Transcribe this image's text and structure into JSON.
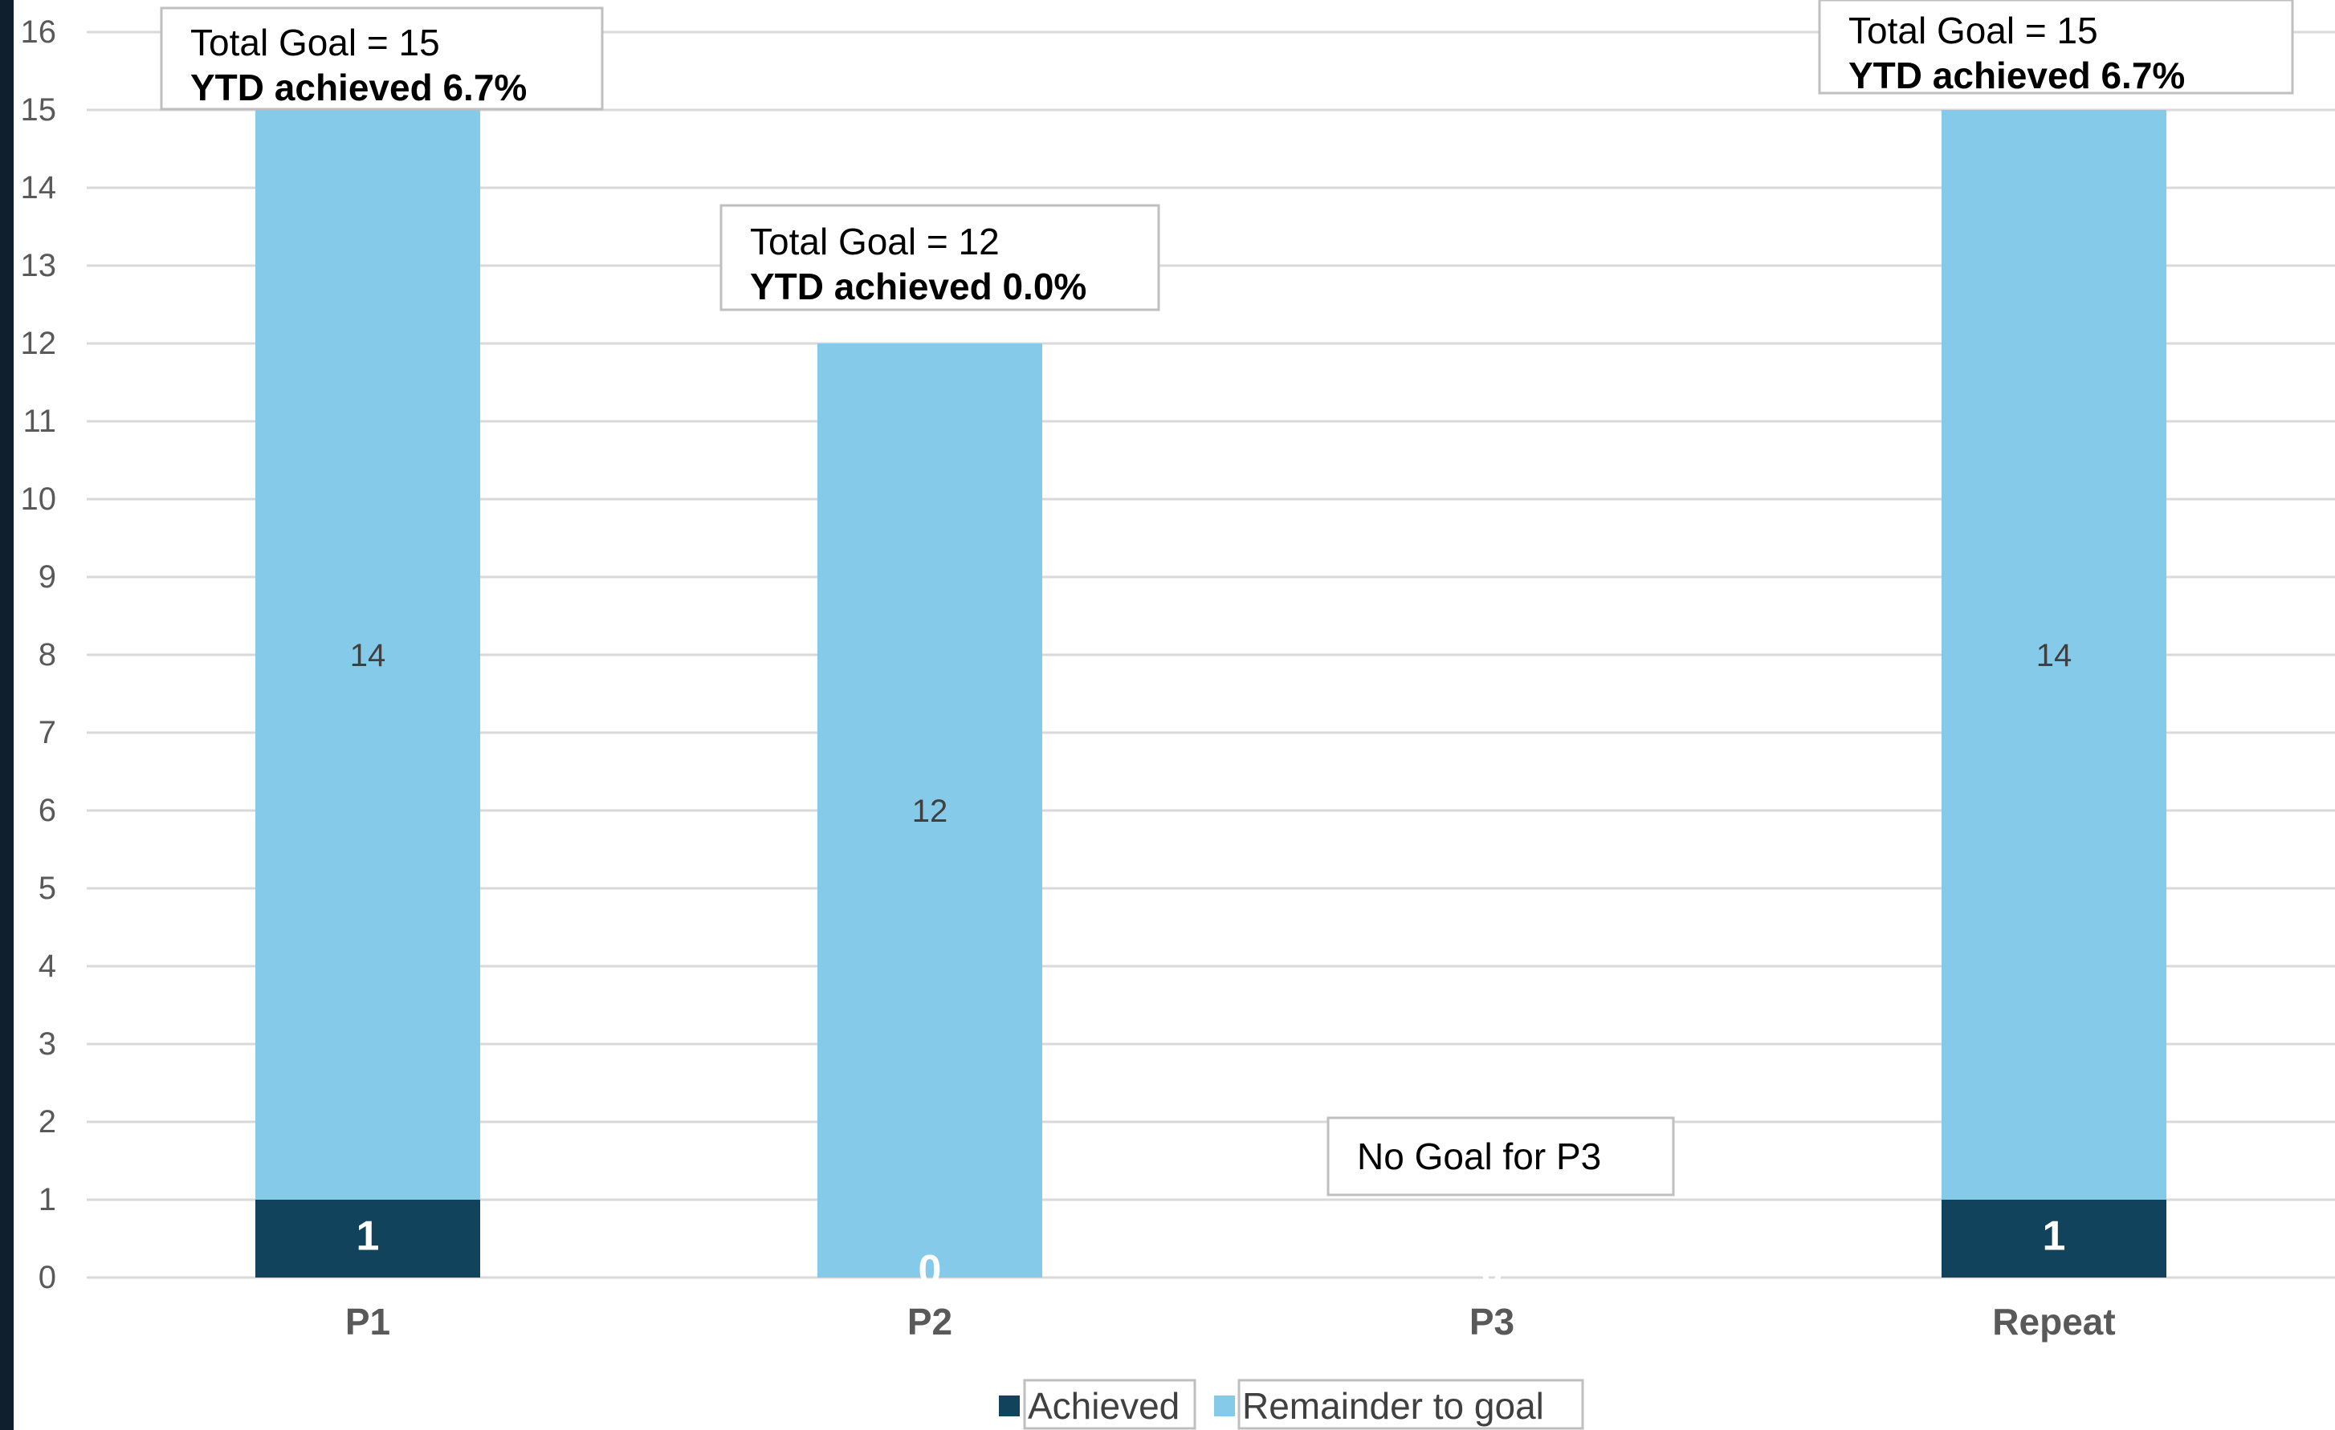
{
  "chart_data": {
    "type": "bar",
    "stacked": true,
    "categories": [
      "P1",
      "P2",
      "P3",
      "Repeat"
    ],
    "series": [
      {
        "name": "Achieved",
        "values": [
          1,
          0,
          0,
          1
        ],
        "labels": [
          "1",
          "0",
          "0",
          "1"
        ],
        "color": "#12435c",
        "label_color": "#ffffff",
        "label_weight": "bold"
      },
      {
        "name": "Remainder to goal",
        "values": [
          14,
          12,
          0,
          14
        ],
        "labels": [
          "14",
          "12",
          "",
          "14"
        ],
        "color": "#85cbe9",
        "label_color": "#404040",
        "label_weight": "normal"
      }
    ],
    "yticks": [
      "0",
      "1",
      "2",
      "3",
      "4",
      "5",
      "6",
      "7",
      "8",
      "9",
      "10",
      "11",
      "12",
      "13",
      "14",
      "15",
      "16"
    ],
    "ylim": [
      0,
      16
    ],
    "grid": true,
    "legend_position": "bottom",
    "callouts": [
      {
        "category": "P1",
        "line1": "Total Goal = 15",
        "line2": "YTD achieved 6.7%"
      },
      {
        "category": "P2",
        "line1": "Total Goal = 12",
        "line2": "YTD achieved 0.0%"
      },
      {
        "category": "P3",
        "line1": "No Goal for P3",
        "line2": ""
      },
      {
        "category": "Repeat",
        "line1": "Total Goal = 15",
        "line2": "YTD achieved 6.7%"
      }
    ]
  }
}
